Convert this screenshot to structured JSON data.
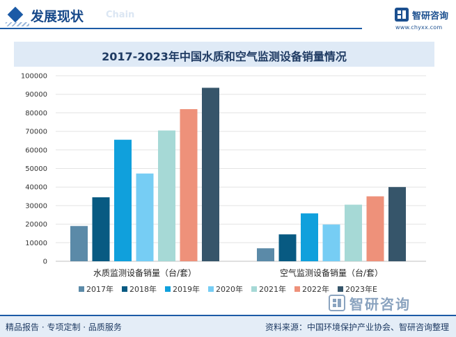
{
  "header": {
    "title": "发展现状",
    "ghost_text": "Chain"
  },
  "brand": {
    "name": "智研咨询",
    "url": "www.chyxx.com",
    "watermark": "智研咨询"
  },
  "footer": {
    "left": "精品报告 · 专项定制 · 品质服务",
    "right": "资料来源：中国环境保护产业协会、智研咨询整理"
  },
  "colors": {
    "accent": "#1b5aa6",
    "title_bg": "#dfeaf6",
    "footer_bg": "#e4edf7"
  },
  "chart_data": {
    "type": "bar",
    "title": "2017-2023年中国水质和空气监测设备销量情况",
    "categories": [
      "水质监测设备销量（台/套）",
      "空气监测设备销量（台/套）"
    ],
    "series": [
      {
        "name": "2017年",
        "color": "#5b8aa8",
        "values": [
          19000,
          7000
        ]
      },
      {
        "name": "2018年",
        "color": "#085a82",
        "values": [
          34500,
          14500
        ]
      },
      {
        "name": "2019年",
        "color": "#10a0dc",
        "values": [
          65500,
          25800
        ]
      },
      {
        "name": "2020年",
        "color": "#76cdf4",
        "values": [
          47300,
          19800
        ]
      },
      {
        "name": "2021年",
        "color": "#a6d9d6",
        "values": [
          70500,
          30500
        ]
      },
      {
        "name": "2022年",
        "color": "#ee917a",
        "values": [
          82000,
          35000
        ]
      },
      {
        "name": "2023年E",
        "color": "#36556a",
        "values": [
          93500,
          40000
        ]
      }
    ],
    "ylim": [
      0,
      100000
    ],
    "yticks": [
      "0",
      "10000",
      "20000",
      "30000",
      "40000",
      "50000",
      "60000",
      "70000",
      "80000",
      "90000",
      "100000"
    ],
    "grid": true,
    "legend_position": "bottom"
  }
}
